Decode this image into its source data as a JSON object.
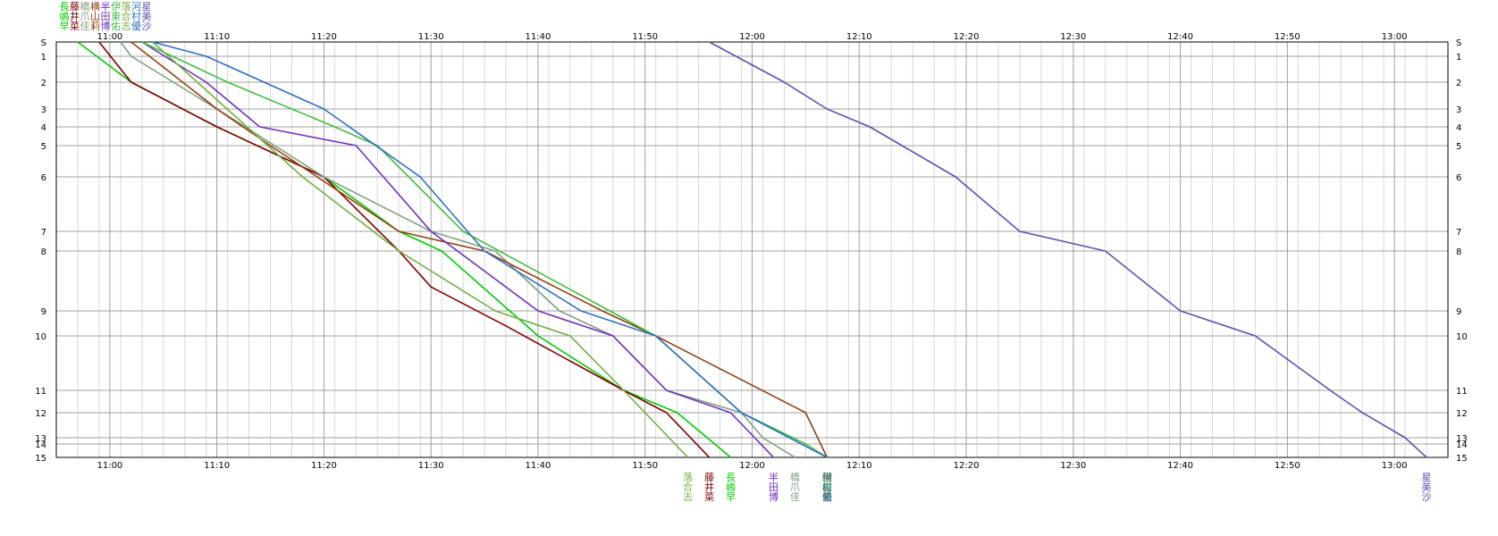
{
  "chart_data": {
    "type": "line",
    "title": "",
    "xlabel": "",
    "ylabel": "",
    "xlim": [
      "10:55",
      "13:05"
    ],
    "x_ticks": [
      "11:00",
      "11:10",
      "11:20",
      "11:30",
      "11:40",
      "11:50",
      "12:00",
      "12:10",
      "12:20",
      "12:30",
      "12:40",
      "12:50",
      "13:00"
    ],
    "y_ticks": [
      "S",
      "1",
      "2",
      "3",
      "4",
      "5",
      "6",
      "7",
      "8",
      "9",
      "10",
      "11",
      "12",
      "13",
      "14",
      "15"
    ],
    "grid": true,
    "series": [
      {
        "name": "長嶋早",
        "color": "#00cc00",
        "top_label_order": 0,
        "bottom_label_order": 3,
        "points": [
          [
            "10:57",
            "S"
          ],
          [
            "11:02",
            "2"
          ],
          [
            "11:10",
            "4"
          ],
          [
            "11:20",
            "6"
          ],
          [
            "11:27",
            "7"
          ],
          [
            "11:31",
            "8"
          ],
          [
            "11:40",
            "10"
          ],
          [
            "11:48",
            "11"
          ],
          [
            "11:53",
            "12"
          ],
          [
            "11:58",
            "15"
          ]
        ]
      },
      {
        "name": "藤井菜",
        "color": "#800000",
        "top_label_order": 1,
        "bottom_label_order": 2,
        "points": [
          [
            "10:59",
            "S"
          ],
          [
            "11:02",
            "2"
          ],
          [
            "11:10",
            "4"
          ],
          [
            "11:20",
            "6"
          ],
          [
            "11:27",
            "8"
          ],
          [
            "11:30",
            "8.6"
          ],
          [
            "11:37",
            "9.6"
          ],
          [
            "11:48",
            "11"
          ],
          [
            "11:52",
            "12"
          ],
          [
            "11:56",
            "15"
          ]
        ]
      },
      {
        "name": "橋爪佳",
        "color": "#80a080",
        "top_label_order": 2,
        "bottom_label_order": 5,
        "points": [
          [
            "11:01",
            "S"
          ],
          [
            "11:02",
            "1"
          ],
          [
            "11:10",
            "3"
          ],
          [
            "11:20",
            "6"
          ],
          [
            "11:30",
            "7"
          ],
          [
            "11:36",
            "8"
          ],
          [
            "11:42",
            "9"
          ],
          [
            "11:47",
            "10"
          ],
          [
            "11:52",
            "11"
          ],
          [
            "11:59",
            "12"
          ],
          [
            "12:01",
            "13"
          ],
          [
            "12:04",
            "15"
          ]
        ]
      },
      {
        "name": "横山莉",
        "color": "#904010",
        "top_label_order": 3,
        "bottom_label_order": 8,
        "points": [
          [
            "11:02",
            "S"
          ],
          [
            "11:10",
            "3"
          ],
          [
            "11:15",
            "5"
          ],
          [
            "11:27",
            "7"
          ],
          [
            "11:35",
            "8"
          ],
          [
            "11:46",
            "9"
          ],
          [
            "11:51",
            "10"
          ],
          [
            "12:05",
            "12"
          ],
          [
            "12:07",
            "15"
          ]
        ]
      },
      {
        "name": "半田博",
        "color": "#7030c0",
        "top_label_order": 4,
        "bottom_label_order": 4,
        "points": [
          [
            "11:03",
            "S"
          ],
          [
            "11:09",
            "2"
          ],
          [
            "11:14",
            "4"
          ],
          [
            "11:23",
            "5"
          ],
          [
            "11:30",
            "7"
          ],
          [
            "11:40",
            "9"
          ],
          [
            "11:47",
            "10"
          ],
          [
            "11:52",
            "11"
          ],
          [
            "11:58",
            "12"
          ],
          [
            "12:02",
            "15"
          ]
        ]
      },
      {
        "name": "伊東佑",
        "color": "#40c040",
        "top_label_order": 5,
        "bottom_label_order": 6,
        "points": [
          [
            "11:03",
            "S"
          ],
          [
            "11:11",
            "2"
          ],
          [
            "11:21",
            "4"
          ],
          [
            "11:25",
            "5"
          ],
          [
            "11:33",
            "7"
          ],
          [
            "11:51",
            "10"
          ],
          [
            "11:59",
            "12"
          ],
          [
            "12:05",
            "14"
          ],
          [
            "12:07",
            "15"
          ]
        ]
      },
      {
        "name": "落合志",
        "color": "#70b040",
        "top_label_order": 6,
        "bottom_label_order": 1,
        "points": [
          [
            "11:04",
            "S"
          ],
          [
            "11:18",
            "6"
          ],
          [
            "11:27",
            "8"
          ],
          [
            "11:36",
            "9"
          ],
          [
            "11:43",
            "10"
          ],
          [
            "11:48",
            "11"
          ],
          [
            "11:54",
            "15"
          ]
        ]
      },
      {
        "name": "河村優",
        "color": "#3070c0",
        "top_label_order": 7,
        "bottom_label_order": 7,
        "points": [
          [
            "11:04",
            "S"
          ],
          [
            "11:09",
            "1"
          ],
          [
            "11:20",
            "3"
          ],
          [
            "11:29",
            "6"
          ],
          [
            "11:35",
            "8"
          ],
          [
            "11:44",
            "9"
          ],
          [
            "11:51",
            "10"
          ],
          [
            "11:59",
            "12"
          ],
          [
            "12:07",
            "15"
          ]
        ]
      },
      {
        "name": "星美沙",
        "color": "#6050b0",
        "top_label_order": 8,
        "bottom_label_order": 9,
        "points": [
          [
            "11:56",
            "S"
          ],
          [
            "12:03",
            "2"
          ],
          [
            "12:07",
            "3"
          ],
          [
            "12:11",
            "4"
          ],
          [
            "12:14",
            "5"
          ],
          [
            "12:19",
            "6"
          ],
          [
            "12:25",
            "7"
          ],
          [
            "12:33",
            "8"
          ],
          [
            "12:40",
            "9"
          ],
          [
            "12:47",
            "10"
          ],
          [
            "12:54",
            "11"
          ],
          [
            "12:57",
            "12"
          ],
          [
            "13:01",
            "13"
          ],
          [
            "13:03",
            "15"
          ]
        ]
      }
    ]
  }
}
